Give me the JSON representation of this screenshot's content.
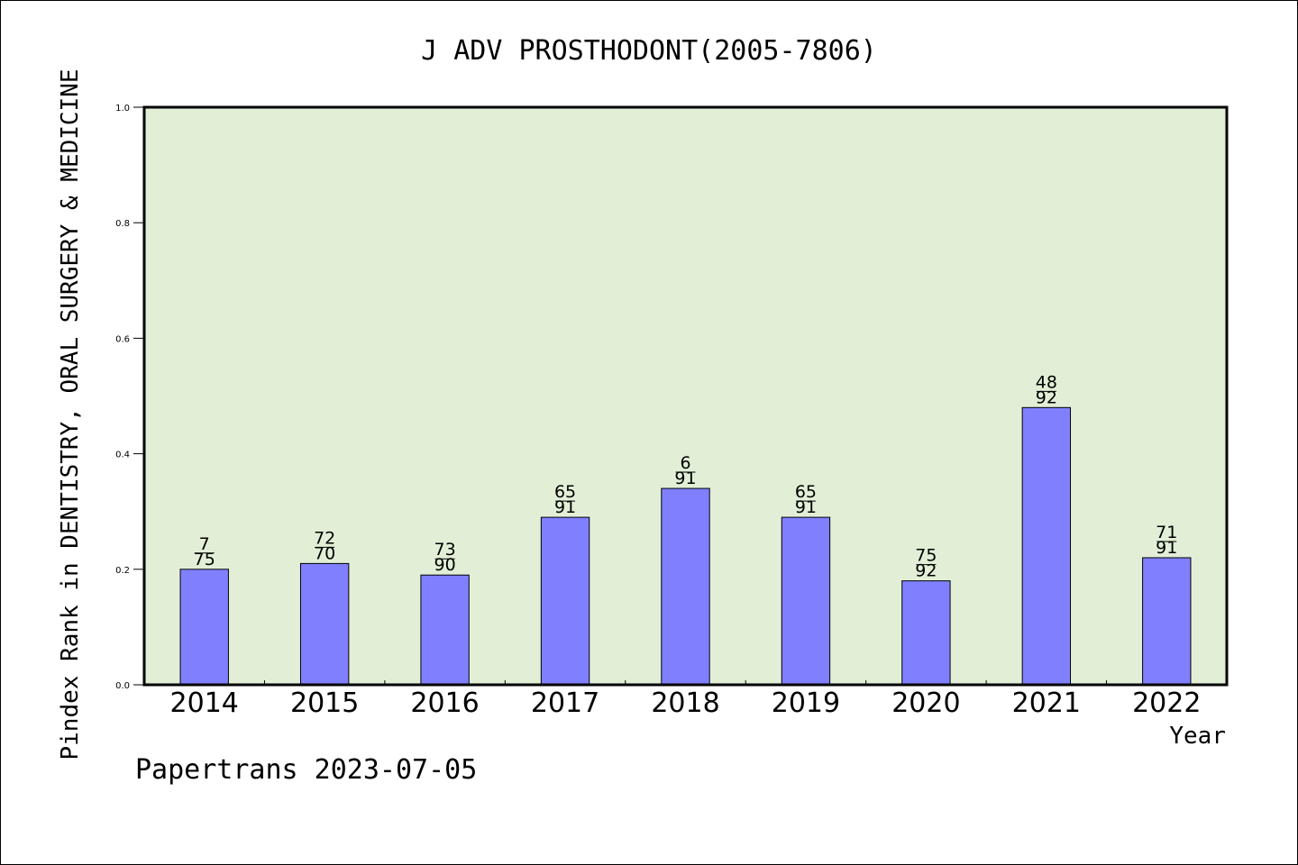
{
  "chart_data": {
    "type": "bar",
    "title": "J ADV PROSTHODONT(2005-7806)",
    "xlabel": "Year",
    "ylabel": "Pindex Rank in DENTISTRY, ORAL SURGERY & MEDICINE",
    "categories": [
      "2014",
      "2015",
      "2016",
      "2017",
      "2018",
      "2019",
      "2020",
      "2021",
      "2022"
    ],
    "values": [
      0.2,
      0.21,
      0.19,
      0.29,
      0.34,
      0.29,
      0.18,
      0.48,
      0.22
    ],
    "bar_labels": [
      {
        "top": "7",
        "bottom": "75"
      },
      {
        "top": "72",
        "bottom": "70"
      },
      {
        "top": "73",
        "bottom": "90"
      },
      {
        "top": "65",
        "bottom": "91"
      },
      {
        "top": "6",
        "bottom": "91"
      },
      {
        "top": "65",
        "bottom": "91"
      },
      {
        "top": "75",
        "bottom": "92"
      },
      {
        "top": "48",
        "bottom": "92"
      },
      {
        "top": "71",
        "bottom": "91"
      }
    ],
    "ylim": [
      0,
      1.0
    ],
    "yticks": [
      "0.0",
      "0.2",
      "0.4",
      "0.6",
      "0.8",
      "1.0"
    ],
    "grid": false,
    "colors": {
      "bar": "#8080ff",
      "plot_bg": "#e2efd6",
      "axis": "#000000"
    }
  },
  "footer": "Papertrans 2023-07-05"
}
